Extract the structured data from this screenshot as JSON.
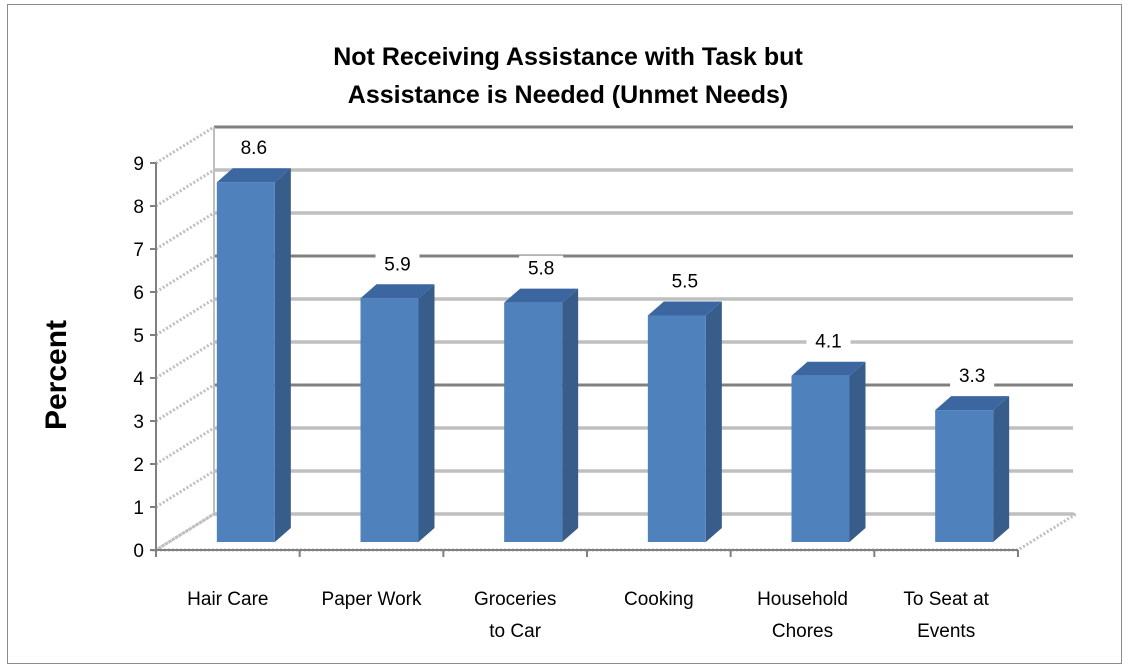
{
  "chart_data": {
    "type": "bar",
    "title_lines": [
      "Not Receiving Assistance with Task but",
      "Assistance is Needed (Unmet Needs)"
    ],
    "xlabel": "",
    "ylabel": "Percent",
    "categories": [
      [
        "Hair Care"
      ],
      [
        "Paper Work"
      ],
      [
        "Groceries",
        "to Car"
      ],
      [
        "Cooking"
      ],
      [
        "Household",
        "Chores"
      ],
      [
        "To Seat at",
        "Events"
      ]
    ],
    "values": [
      8.6,
      5.9,
      5.8,
      5.5,
      4.1,
      3.3
    ],
    "data_labels": [
      "8.6",
      "5.9",
      "5.8",
      "5.5",
      "4.1",
      "3.3"
    ],
    "ylim": [
      0,
      9
    ],
    "yticks": [
      "0",
      "1",
      "2",
      "3",
      "4",
      "5",
      "6",
      "7",
      "8",
      "9"
    ],
    "grid": true,
    "legend": "none",
    "style": "3d-column",
    "colors": {
      "bar_front": "#4f81bd",
      "bar_side": "#385d8a",
      "bar_top": "#3c66a0",
      "gridline": "#bfbfbf",
      "gridline_dark": "#808080"
    }
  }
}
